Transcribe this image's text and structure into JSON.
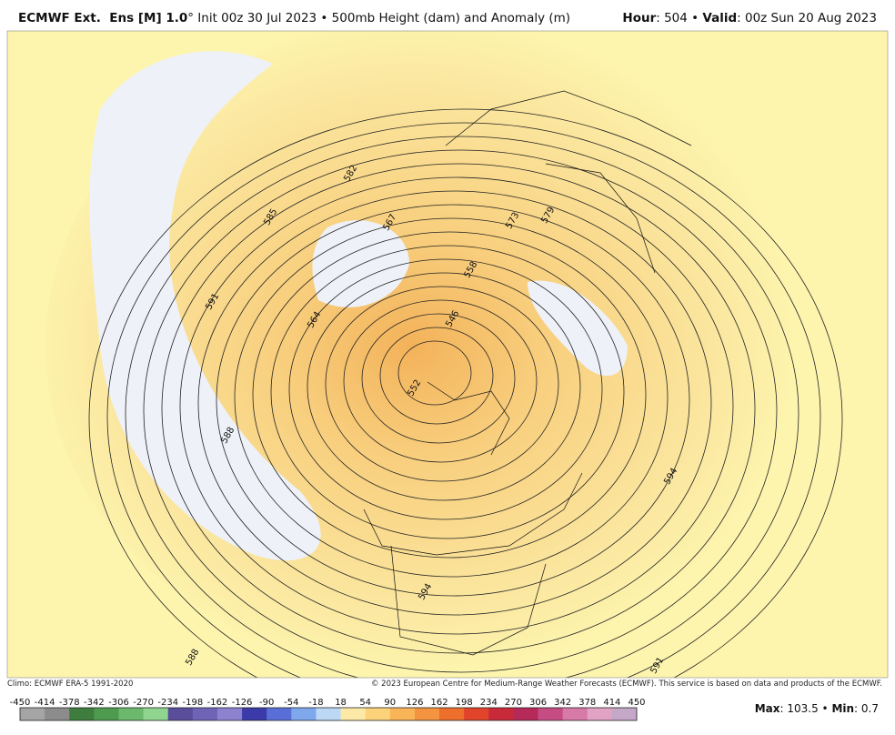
{
  "header": {
    "title_bold": "ECMWF Ext.  Ens [M] 1.0",
    "title_rest": "° Init 00z 30 Jul 2023 • 500mb Height (dam) and Anomaly (m)",
    "hour_label": "Hour",
    "hour_value": ": 504 • ",
    "valid_label": "Valid",
    "valid_value": ": 00z Sun 20 Aug 2023"
  },
  "map": {
    "contour_labels": [
      "582",
      "585",
      "567",
      "573",
      "579",
      "591",
      "564",
      "558",
      "546",
      "552",
      "588",
      "594",
      "594",
      "588",
      "591"
    ]
  },
  "footer": {
    "climo": "Climo: ECMWF ERA-5 1991-2020",
    "copyright": "© 2023 European Centre for Medium-Range Weather Forecasts (ECMWF). This service is based on data and products of the ECMWF.",
    "max_label": "Max",
    "max_value": ": 103.5 • ",
    "min_label": "Min",
    "min_value": ": 0.7"
  },
  "colorbar": {
    "ticks": [
      -450,
      -414,
      -378,
      -342,
      -306,
      -270,
      -234,
      -198,
      -162,
      -126,
      -90,
      -54,
      -18,
      18,
      54,
      90,
      126,
      162,
      198,
      234,
      270,
      306,
      342,
      378,
      414,
      450
    ]
  }
}
